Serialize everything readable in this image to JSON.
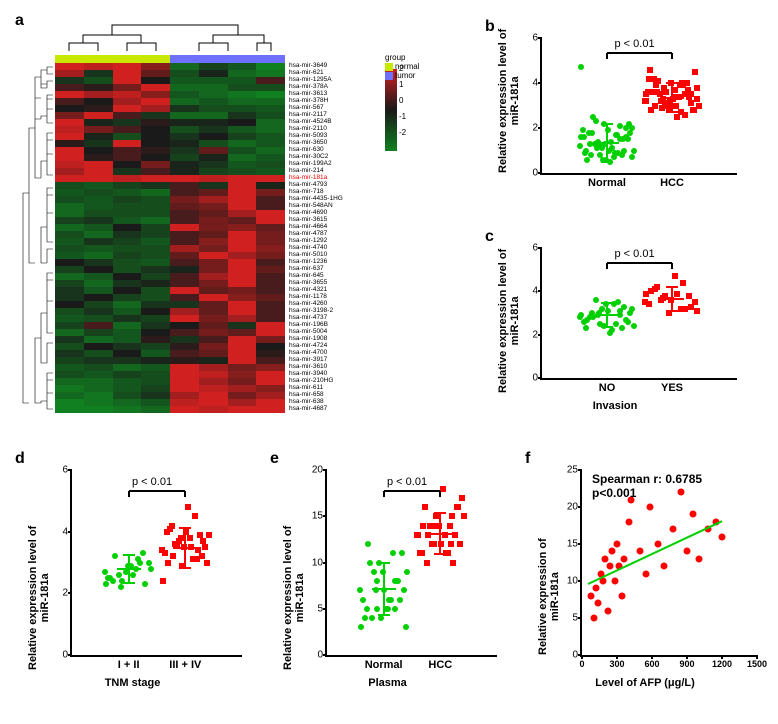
{
  "colors": {
    "green": "#00d000",
    "red": "#ff0000",
    "normal_group": "#c8e800",
    "tumor_group": "#7070ff",
    "heat_high": "#d02020",
    "heat_mid_high": "#803030",
    "heat_mid": "#1a1a1a",
    "heat_mid_low": "#205020",
    "heat_low": "#108020",
    "black": "#000000"
  },
  "panel_a": {
    "label": "a",
    "mir_names": [
      "hsa-mir-3649",
      "hsa-mir-621",
      "hsa-mir-1295A",
      "hsa-mir-378A",
      "hsa-mir-3613",
      "hsa-mir-378H",
      "hsa-mir-567",
      "hsa-mir-2117",
      "hsa-mir-4524B",
      "hsa-mir-2110",
      "hsa-mir-5093",
      "hsa-mir-3650",
      "hsa-mir-630",
      "hsa-mir-30C2",
      "hsa-mir-199A2",
      "hsa-mir-214",
      "hsa-mir-181a",
      "hsa-mir-4793",
      "hsa-mir-718",
      "hsa-mir-4435-1HG",
      "hsa-mir-548AN",
      "hsa-mir-4690",
      "hsa-mir-3615",
      "hsa-mir-4664",
      "hsa-mir-4787",
      "hsa-mir-1292",
      "hsa-mir-4740",
      "hsa-mir-5010",
      "hsa-mir-1236",
      "hsa-mir-637",
      "hsa-mir-645",
      "hsa-mir-3655",
      "hsa-mir-4321",
      "hsa-mir-1178",
      "hsa-mir-4260",
      "hsa-mir-3198-2",
      "hsa-mir-4737",
      "hsa-mir-196B",
      "hsa-mir-5004",
      "hsa-mir-1908",
      "hsa-mir-4724",
      "hsa-mir-4700",
      "hsa-mir-3917",
      "hsa-mir-3610",
      "hsa-mir-3940",
      "hsa-mir-210HG",
      "hsa-mir-611",
      "hsa-mir-658",
      "hsa-mir-638",
      "hsa-mir-4687"
    ],
    "highlight_row": 16,
    "n_cols": 8,
    "group_split": 4,
    "colorbar_ticks": [
      "2",
      "1",
      "0",
      "-1",
      "-2"
    ],
    "legend": {
      "title": "group",
      "items": [
        {
          "label": "normal",
          "color": "#c8e800"
        },
        {
          "label": "tumor",
          "color": "#7070ff"
        }
      ]
    },
    "heat_values": [
      [
        2,
        1.8,
        2,
        1.2,
        -1.5,
        -0.8,
        -1.2,
        -2
      ],
      [
        1.5,
        -0.5,
        2,
        0.8,
        -1,
        -0.2,
        -1.5,
        -1.8
      ],
      [
        -0.5,
        -1,
        2,
        0,
        -1.2,
        -1.2,
        -1.2,
        0.5
      ],
      [
        0.5,
        0.2,
        1,
        2,
        -1.5,
        -1.5,
        -1,
        -1
      ],
      [
        2,
        1.5,
        1.8,
        1.2,
        -1.2,
        -1.5,
        -1.8,
        -2
      ],
      [
        0.5,
        0,
        1.5,
        2,
        -1.5,
        -1.2,
        -1.5,
        -1.5
      ],
      [
        0,
        0.2,
        2,
        1.5,
        -0.5,
        -1,
        -1,
        -1.2
      ],
      [
        1,
        2,
        0.5,
        -0.5,
        -1.5,
        -1.5,
        -0.5,
        -1
      ],
      [
        2,
        -0.2,
        -0.5,
        0.2,
        -0.2,
        -0.2,
        0,
        -1.5
      ],
      [
        1.8,
        1,
        0.5,
        0,
        -1,
        -0.5,
        -1.2,
        -1.5
      ],
      [
        2,
        -0.2,
        -1,
        0,
        -0.5,
        0,
        -0.8,
        -1.2
      ],
      [
        0.2,
        -0.5,
        2,
        0,
        -0.2,
        -1,
        -1.5,
        -1.2
      ],
      [
        2,
        0,
        0.5,
        0.2,
        -0.5,
        0.8,
        -1,
        -1.5
      ],
      [
        2,
        0.2,
        0.5,
        0,
        -0.8,
        -0.2,
        -1.5,
        -1.2
      ],
      [
        1.8,
        2,
        0,
        1,
        -0.2,
        -0.5,
        -1.2,
        -1
      ],
      [
        1.5,
        2,
        -0.5,
        0.5,
        -0.2,
        -0.8,
        -1,
        -1.2
      ],
      [
        2,
        2,
        1.8,
        2,
        2,
        1.8,
        2,
        2
      ],
      [
        -1,
        -1.2,
        -0.8,
        -0.5,
        0.5,
        -0.5,
        2,
        -0.2
      ],
      [
        -1.2,
        -1,
        -1.2,
        -1.5,
        0.5,
        0.8,
        2,
        1
      ],
      [
        -1,
        -1.2,
        -0.8,
        -1,
        1,
        1.5,
        2,
        0.5
      ],
      [
        -1.5,
        -1.2,
        -1,
        -1,
        0.8,
        1,
        2,
        0.5
      ],
      [
        -1.5,
        -1,
        -1,
        -1,
        0.5,
        0.8,
        1.5,
        2
      ],
      [
        -0.8,
        -0.5,
        -1.2,
        -1.5,
        0.5,
        1,
        0.8,
        2
      ],
      [
        -1.5,
        -1.2,
        0,
        -0.8,
        2,
        1,
        1.2,
        0.8
      ],
      [
        -1,
        -1.5,
        -0.5,
        -0.8,
        0.5,
        0.8,
        2,
        1
      ],
      [
        -1.2,
        -0.5,
        -0.8,
        -1.2,
        0.5,
        1.2,
        2,
        1
      ],
      [
        -1,
        -1.2,
        -1,
        -1,
        1.5,
        1,
        2,
        1.2
      ],
      [
        -1.2,
        -1.5,
        -0.8,
        -1,
        0.8,
        2,
        1.5,
        1
      ],
      [
        0,
        -0.5,
        -1,
        -1.2,
        0.5,
        1,
        2,
        0.5
      ],
      [
        -0.8,
        0,
        -1,
        -0.5,
        -0.2,
        1,
        2,
        0.8
      ],
      [
        -1.5,
        -1.2,
        0,
        -0.8,
        0.5,
        1.5,
        2,
        0.5
      ],
      [
        -0.8,
        -1.5,
        -0.5,
        -0.2,
        0.5,
        1,
        2,
        0.5
      ],
      [
        -0.5,
        -1.2,
        0,
        -1,
        2,
        0.8,
        1,
        0.5
      ],
      [
        -0.5,
        0,
        -0.8,
        -1,
        0.5,
        2,
        1.2,
        0.8
      ],
      [
        0,
        -0.8,
        -1.5,
        -0.5,
        -0.5,
        0.8,
        2,
        0.5
      ],
      [
        -1,
        -0.5,
        -1.2,
        0,
        1.5,
        0.8,
        2,
        0.5
      ],
      [
        -1.2,
        -1,
        -0.5,
        -0.8,
        2,
        1,
        1.5,
        0.5
      ],
      [
        -0.8,
        0.5,
        -1.5,
        -0.5,
        0,
        0.8,
        -0.5,
        2
      ],
      [
        -1.5,
        -0.8,
        -1.2,
        0,
        0.5,
        1,
        0.8,
        2
      ],
      [
        -0.5,
        -1.5,
        -1.2,
        0.2,
        -0.5,
        0.5,
        2,
        1
      ],
      [
        -1,
        0,
        -0.5,
        -0.8,
        0.2,
        1,
        2,
        0
      ],
      [
        -0.5,
        -1,
        0,
        -1.2,
        0.5,
        0.8,
        2,
        0.2
      ],
      [
        -0.8,
        -0.5,
        -0.5,
        -0.2,
        0.2,
        -0.2,
        2,
        0.5
      ],
      [
        -1.2,
        -1,
        -1.5,
        -1.2,
        2,
        1.5,
        1,
        1.2
      ],
      [
        -1,
        -1.2,
        -0.8,
        -1,
        2,
        1.8,
        1.2,
        2
      ],
      [
        -1.5,
        -1.5,
        -1.2,
        -1,
        2,
        1.5,
        1,
        2
      ],
      [
        -1.8,
        -1.5,
        -1.2,
        -0.8,
        2,
        1.8,
        1.5,
        1.2
      ],
      [
        -1.5,
        -1.8,
        -1,
        -0.5,
        1.5,
        2,
        1,
        1.5
      ],
      [
        -2,
        -1.8,
        -1.5,
        -1.2,
        1.8,
        2,
        1.5,
        2
      ],
      [
        -2,
        -2,
        -1.8,
        -1.5,
        2,
        1.8,
        2,
        2
      ]
    ]
  },
  "panel_b": {
    "label": "b",
    "ylabel": "Relative expression level of\nmiR-181a",
    "ymax": 6,
    "yticks": [
      0,
      2,
      4,
      6
    ],
    "groups": [
      {
        "label": "Normal",
        "color": "#00d000",
        "shape": "circle",
        "mean": 1.3,
        "sd": 0.85,
        "points": [
          1.2,
          0.8,
          1.5,
          1.0,
          0.6,
          2.0,
          1.8,
          1.1,
          0.7,
          1.4,
          0.9,
          1.6,
          2.2,
          1.0,
          1.3,
          0.5,
          1.8,
          2.3,
          1.7,
          4.7,
          1.1,
          0.8,
          0.6,
          1.9,
          1.5,
          2.5,
          0.7,
          1.0,
          1.2,
          2.1,
          0.9,
          1.3,
          1.6,
          0.8,
          1.4,
          2.0,
          1.1,
          1.7,
          1.9,
          0.6,
          1.5,
          1.8,
          1.0,
          2.2,
          1.3,
          0.9,
          1.6,
          1.2
        ]
      },
      {
        "label": "HCC",
        "color": "#ff0000",
        "shape": "square",
        "mean": 3.3,
        "sd": 0.65,
        "points": [
          3.2,
          3.0,
          3.5,
          2.8,
          4.0,
          3.1,
          3.6,
          2.5,
          3.8,
          3.3,
          3.9,
          4.2,
          2.9,
          3.4,
          3.0,
          3.7,
          4.5,
          3.2,
          2.7,
          3.5,
          3.1,
          4.0,
          3.6,
          3.3,
          2.8,
          4.1,
          3.4,
          3.0,
          3.8,
          2.6,
          4.6,
          3.2,
          3.5,
          3.9,
          3.0,
          3.3,
          2.9,
          4.0,
          3.6,
          3.1,
          3.7,
          4.2,
          3.4,
          2.8,
          3.5,
          3.9,
          3.2,
          3.6
        ]
      }
    ],
    "pval": "p < 0.01"
  },
  "panel_c": {
    "label": "c",
    "ylabel": "Relative expression level of\nmiR-181a",
    "xlabel": "Invasion",
    "ymax": 6,
    "yticks": [
      0,
      2,
      4,
      6
    ],
    "groups": [
      {
        "label": "NO",
        "color": "#00d000",
        "shape": "circle",
        "mean": 2.85,
        "sd": 0.55,
        "points": [
          2.8,
          2.5,
          3.1,
          2.3,
          3.4,
          2.7,
          3.0,
          2.2,
          3.2,
          2.9,
          3.5,
          2.6,
          2.4,
          3.3,
          2.8,
          2.1,
          3.0,
          3.6,
          2.5,
          2.9,
          3.2,
          2.3,
          2.7,
          3.1,
          2.6,
          2.8,
          3.4,
          2.4,
          3.0,
          2.9
        ]
      },
      {
        "label": "YES",
        "color": "#ff0000",
        "shape": "square",
        "mean": 3.6,
        "sd": 0.55,
        "points": [
          3.5,
          3.8,
          3.2,
          4.0,
          3.6,
          3.3,
          4.2,
          3.9,
          3.1,
          3.7,
          4.4,
          3.4,
          3.0,
          3.8,
          4.1,
          4.7,
          3.5,
          3.6,
          3.2,
          3.9
        ]
      }
    ],
    "pval": "p < 0.01"
  },
  "panel_d": {
    "label": "d",
    "ylabel": "Relative expression level of\nmiR-181a",
    "xlabel": "TNM stage",
    "ymax": 6,
    "yticks": [
      0,
      2,
      4,
      6
    ],
    "groups": [
      {
        "label": "I + II",
        "color": "#00d000",
        "shape": "circle",
        "mean": 2.75,
        "sd": 0.45,
        "points": [
          2.7,
          2.4,
          3.0,
          2.5,
          2.9,
          2.3,
          3.2,
          2.6,
          2.8,
          2.2,
          3.1,
          2.5,
          2.7,
          3.3,
          2.4,
          2.9,
          3.0,
          2.6,
          2.8,
          2.3
        ]
      },
      {
        "label": "III + IV",
        "color": "#ff0000",
        "shape": "square",
        "mean": 3.45,
        "sd": 0.65,
        "points": [
          3.4,
          3.7,
          3.1,
          4.0,
          3.5,
          3.2,
          4.2,
          3.8,
          3.0,
          3.6,
          4.5,
          3.3,
          2.9,
          3.9,
          4.1,
          4.8,
          3.5,
          3.6,
          3.1,
          2.4,
          3.8,
          3.4,
          3.0,
          4.0,
          3.7,
          3.2,
          3.5,
          3.9
        ]
      }
    ],
    "pval": "p < 0.01"
  },
  "panel_e": {
    "label": "e",
    "ylabel": "Relative expression level of\nmiR-181a",
    "xlabel": "Plasma",
    "ymax": 20,
    "yticks": [
      0,
      5,
      10,
      15,
      20
    ],
    "groups": [
      {
        "label": "Normal",
        "color": "#00d000",
        "shape": "circle",
        "mean": 7.0,
        "sd": 2.8,
        "points": [
          7,
          5,
          8,
          4,
          9,
          6,
          10,
          5,
          3,
          7,
          11,
          6,
          4,
          8,
          12,
          5,
          7,
          9,
          6,
          3,
          10,
          8,
          5,
          7,
          11,
          4,
          6,
          9,
          8,
          5
        ]
      },
      {
        "label": "HCC",
        "color": "#ff0000",
        "shape": "square",
        "mean": 13.0,
        "sd": 2.2,
        "points": [
          13,
          12,
          15,
          11,
          14,
          16,
          10,
          13,
          17,
          12,
          14,
          11,
          15,
          13,
          16,
          18,
          12,
          14,
          11,
          13,
          15,
          10,
          14,
          12,
          16,
          13,
          11,
          15,
          14,
          12
        ]
      }
    ],
    "pval": "p < 0.01"
  },
  "panel_f": {
    "label": "f",
    "ylabel": "Relative expression of\nmiR-181a",
    "xlabel": "Level of AFP (μg/L)",
    "ymax": 25,
    "yticks": [
      0,
      5,
      10,
      15,
      20,
      25
    ],
    "xmax": 1500,
    "xticks": [
      0,
      300,
      600,
      900,
      1200,
      1500
    ],
    "corr_r": "Spearman r: 0.6785",
    "corr_p": "p<0.001",
    "line": {
      "x1": 50,
      "y1": 9.5,
      "x2": 1200,
      "y2": 18,
      "color": "#00d000"
    },
    "points": [
      {
        "x": 80,
        "y": 8
      },
      {
        "x": 100,
        "y": 5
      },
      {
        "x": 120,
        "y": 9
      },
      {
        "x": 140,
        "y": 7
      },
      {
        "x": 160,
        "y": 11
      },
      {
        "x": 180,
        "y": 10
      },
      {
        "x": 200,
        "y": 13
      },
      {
        "x": 220,
        "y": 6
      },
      {
        "x": 240,
        "y": 12
      },
      {
        "x": 260,
        "y": 14
      },
      {
        "x": 280,
        "y": 10
      },
      {
        "x": 300,
        "y": 15
      },
      {
        "x": 320,
        "y": 12
      },
      {
        "x": 340,
        "y": 8
      },
      {
        "x": 360,
        "y": 13
      },
      {
        "x": 400,
        "y": 18
      },
      {
        "x": 420,
        "y": 21
      },
      {
        "x": 500,
        "y": 14
      },
      {
        "x": 550,
        "y": 11
      },
      {
        "x": 580,
        "y": 20
      },
      {
        "x": 650,
        "y": 15
      },
      {
        "x": 700,
        "y": 12
      },
      {
        "x": 780,
        "y": 17
      },
      {
        "x": 850,
        "y": 22
      },
      {
        "x": 900,
        "y": 14
      },
      {
        "x": 950,
        "y": 19
      },
      {
        "x": 1000,
        "y": 13
      },
      {
        "x": 1080,
        "y": 17
      },
      {
        "x": 1150,
        "y": 18
      },
      {
        "x": 1200,
        "y": 16
      }
    ]
  }
}
